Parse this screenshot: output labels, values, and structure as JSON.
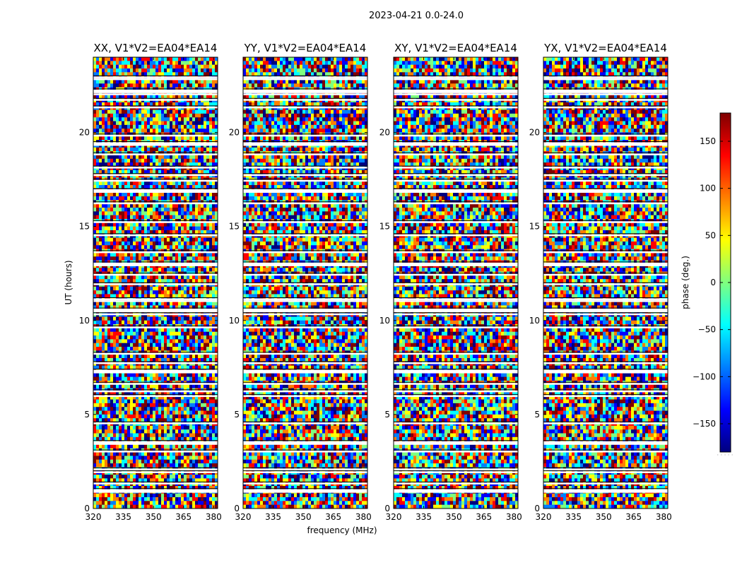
{
  "figure": {
    "suptitle": "2023-04-21 0.0-24.0"
  },
  "chart_data": {
    "type": "heatmap",
    "xlabel": "frequency (MHz)",
    "ylabel": "UT (hours)",
    "xlim": [
      320,
      382
    ],
    "ylim": [
      0,
      24
    ],
    "xticks": [
      "320",
      "335",
      "350",
      "365",
      "380"
    ],
    "yticks": [
      "0",
      "5",
      "10",
      "15",
      "20"
    ],
    "panels": [
      {
        "title": "XX, V1*V2=EA04*EA14"
      },
      {
        "title": "YY, V1*V2=EA04*EA14"
      },
      {
        "title": "XY, V1*V2=EA04*EA14"
      },
      {
        "title": "YX, V1*V2=EA04*EA14"
      }
    ],
    "colorbar": {
      "label": "phase (deg.)",
      "range": [
        -180,
        180
      ],
      "ticks": [
        "150",
        "100",
        "50",
        "0",
        "−50",
        "−100",
        "−150"
      ],
      "colormap": [
        "#00007f",
        "#0000ff",
        "#007fff",
        "#00ffff",
        "#7fff7f",
        "#ffff00",
        "#ff7f00",
        "#ff0000",
        "#7f0000"
      ]
    },
    "flagged_hours": [
      0.95,
      1.3,
      1.9,
      2.05,
      3.0,
      3.5,
      4.5,
      5.95,
      6.2,
      6.6,
      7.3,
      7.7,
      8.2,
      9.6,
      10.3,
      10.55,
      11.0,
      11.1,
      11.9,
      12.4,
      13.0,
      13.6,
      14.5,
      15.2,
      16.2,
      16.9,
      17.4,
      17.7,
      18.1,
      18.8,
      19.4,
      19.8,
      21.3,
      21.7,
      22.0,
      22.2,
      22.8,
      22.9
    ]
  }
}
